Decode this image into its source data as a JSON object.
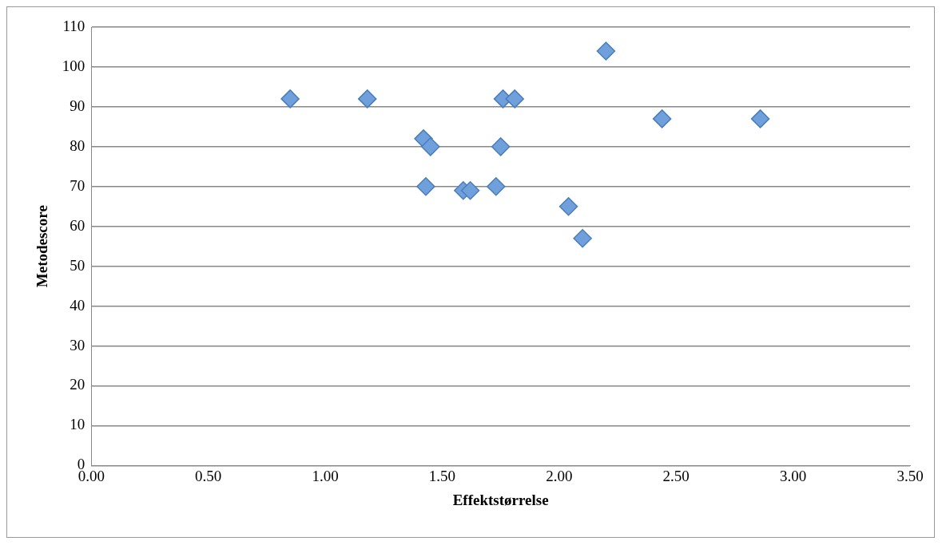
{
  "chart_data": {
    "type": "scatter",
    "xlabel": "Effektstørrelse",
    "ylabel": "Metodescore",
    "x": [
      0.85,
      1.18,
      1.76,
      1.81,
      1.42,
      1.45,
      1.75,
      1.43,
      1.59,
      1.62,
      1.73,
      2.04,
      2.1,
      2.2,
      2.44,
      2.86
    ],
    "series": [
      {
        "color": "#6fa0dc",
        "values": [
          92,
          92,
          92,
          92,
          82,
          80,
          80,
          70,
          69,
          69,
          70,
          65,
          57,
          104,
          87,
          87
        ]
      }
    ],
    "xlim": [
      0,
      3.5
    ],
    "xticks": [
      {
        "value": 0,
        "label": "0.00"
      },
      {
        "value": 0.5,
        "label": "0.50"
      },
      {
        "value": 1,
        "label": "1.00"
      },
      {
        "value": 1.5,
        "label": "1.50"
      },
      {
        "value": 2,
        "label": "2.00"
      },
      {
        "value": 2.5,
        "label": "2.50"
      },
      {
        "value": 3,
        "label": "3.00"
      },
      {
        "value": 3.5,
        "label": "3.50"
      }
    ],
    "ylim": [
      0,
      110
    ],
    "yticks": [
      0,
      10,
      20,
      30,
      40,
      50,
      60,
      70,
      80,
      90,
      100,
      110
    ],
    "grid": "y",
    "legend": false,
    "marker": "diamond"
  }
}
